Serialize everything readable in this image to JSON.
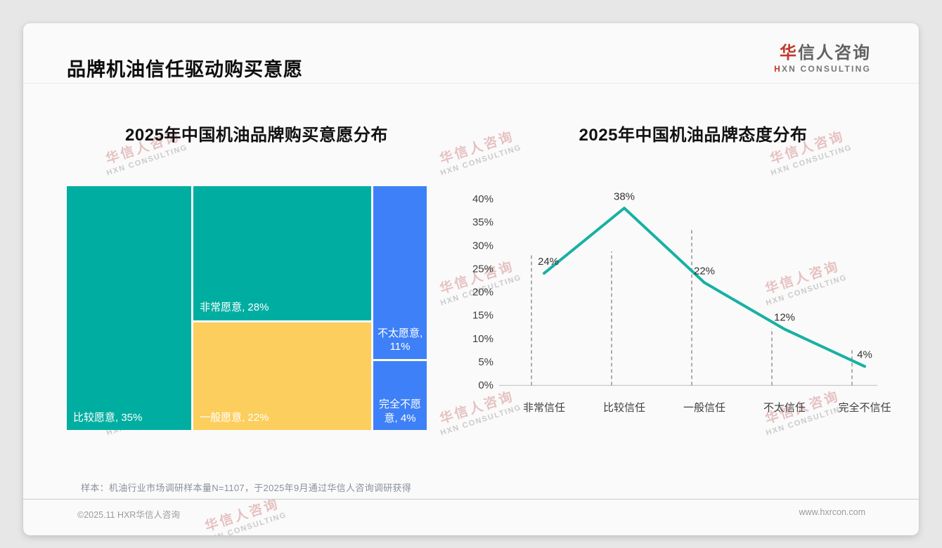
{
  "header": {
    "title": "品牌机油信任驱动购买意愿"
  },
  "logo": {
    "cn_accent": "华",
    "cn_rest": "信人咨询",
    "en_accent": "H",
    "en_rest": "XN CONSULTING"
  },
  "watermark": {
    "line1": "华信人咨询",
    "line2": "HXN CONSULTING"
  },
  "chart_data": [
    {
      "type": "treemap",
      "title": "2025年中国机油品牌购买意愿分布",
      "categories": [
        "比较愿意",
        "非常愿意",
        "一般愿意",
        "不太愿意",
        "完全不愿意"
      ],
      "values": [
        35,
        28,
        22,
        11,
        4
      ],
      "labels": [
        "比较愿意, 35%",
        "非常愿意, 28%",
        "一般愿意, 22%",
        "不太愿意, 11%",
        "完全不愿意, 4%"
      ],
      "colors": [
        "#00AEA1",
        "#00AEA1",
        "#FBCE5D",
        "#3E80F7",
        "#3E80F7"
      ],
      "layout_columns": [
        [
          0
        ],
        [
          1,
          2
        ],
        [
          3,
          4
        ]
      ],
      "label_align": [
        "bl",
        "bl",
        "bl",
        "bc",
        "bc"
      ],
      "unit": "%"
    },
    {
      "type": "line",
      "title": "2025年中国机油品牌态度分布",
      "categories": [
        "非常信任",
        "比较信任",
        "一般信任",
        "不太信任",
        "完全不信任"
      ],
      "values": [
        24,
        38,
        22,
        12,
        4
      ],
      "labels": [
        "24%",
        "38%",
        "22%",
        "12%",
        "4%"
      ],
      "yticks": [
        "0%",
        "5%",
        "10%",
        "15%",
        "20%",
        "25%",
        "30%",
        "35%",
        "40%"
      ],
      "ylim": [
        0,
        40
      ],
      "line_color": "#17B1A3",
      "dropline_tops": [
        28.2,
        28.7,
        33.8,
        12.2,
        7.7
      ],
      "grid": "vertical dashed droplines per category, light gray x-axis, no y gridlines, legend none"
    }
  ],
  "footer": {
    "note": "样本：机油行业市场调研样本量N=1107，于2025年9月通过华信人咨询调研获得",
    "copyright": "©2025.11 HXR华信人咨询",
    "website": "www.hxrcon.com"
  }
}
